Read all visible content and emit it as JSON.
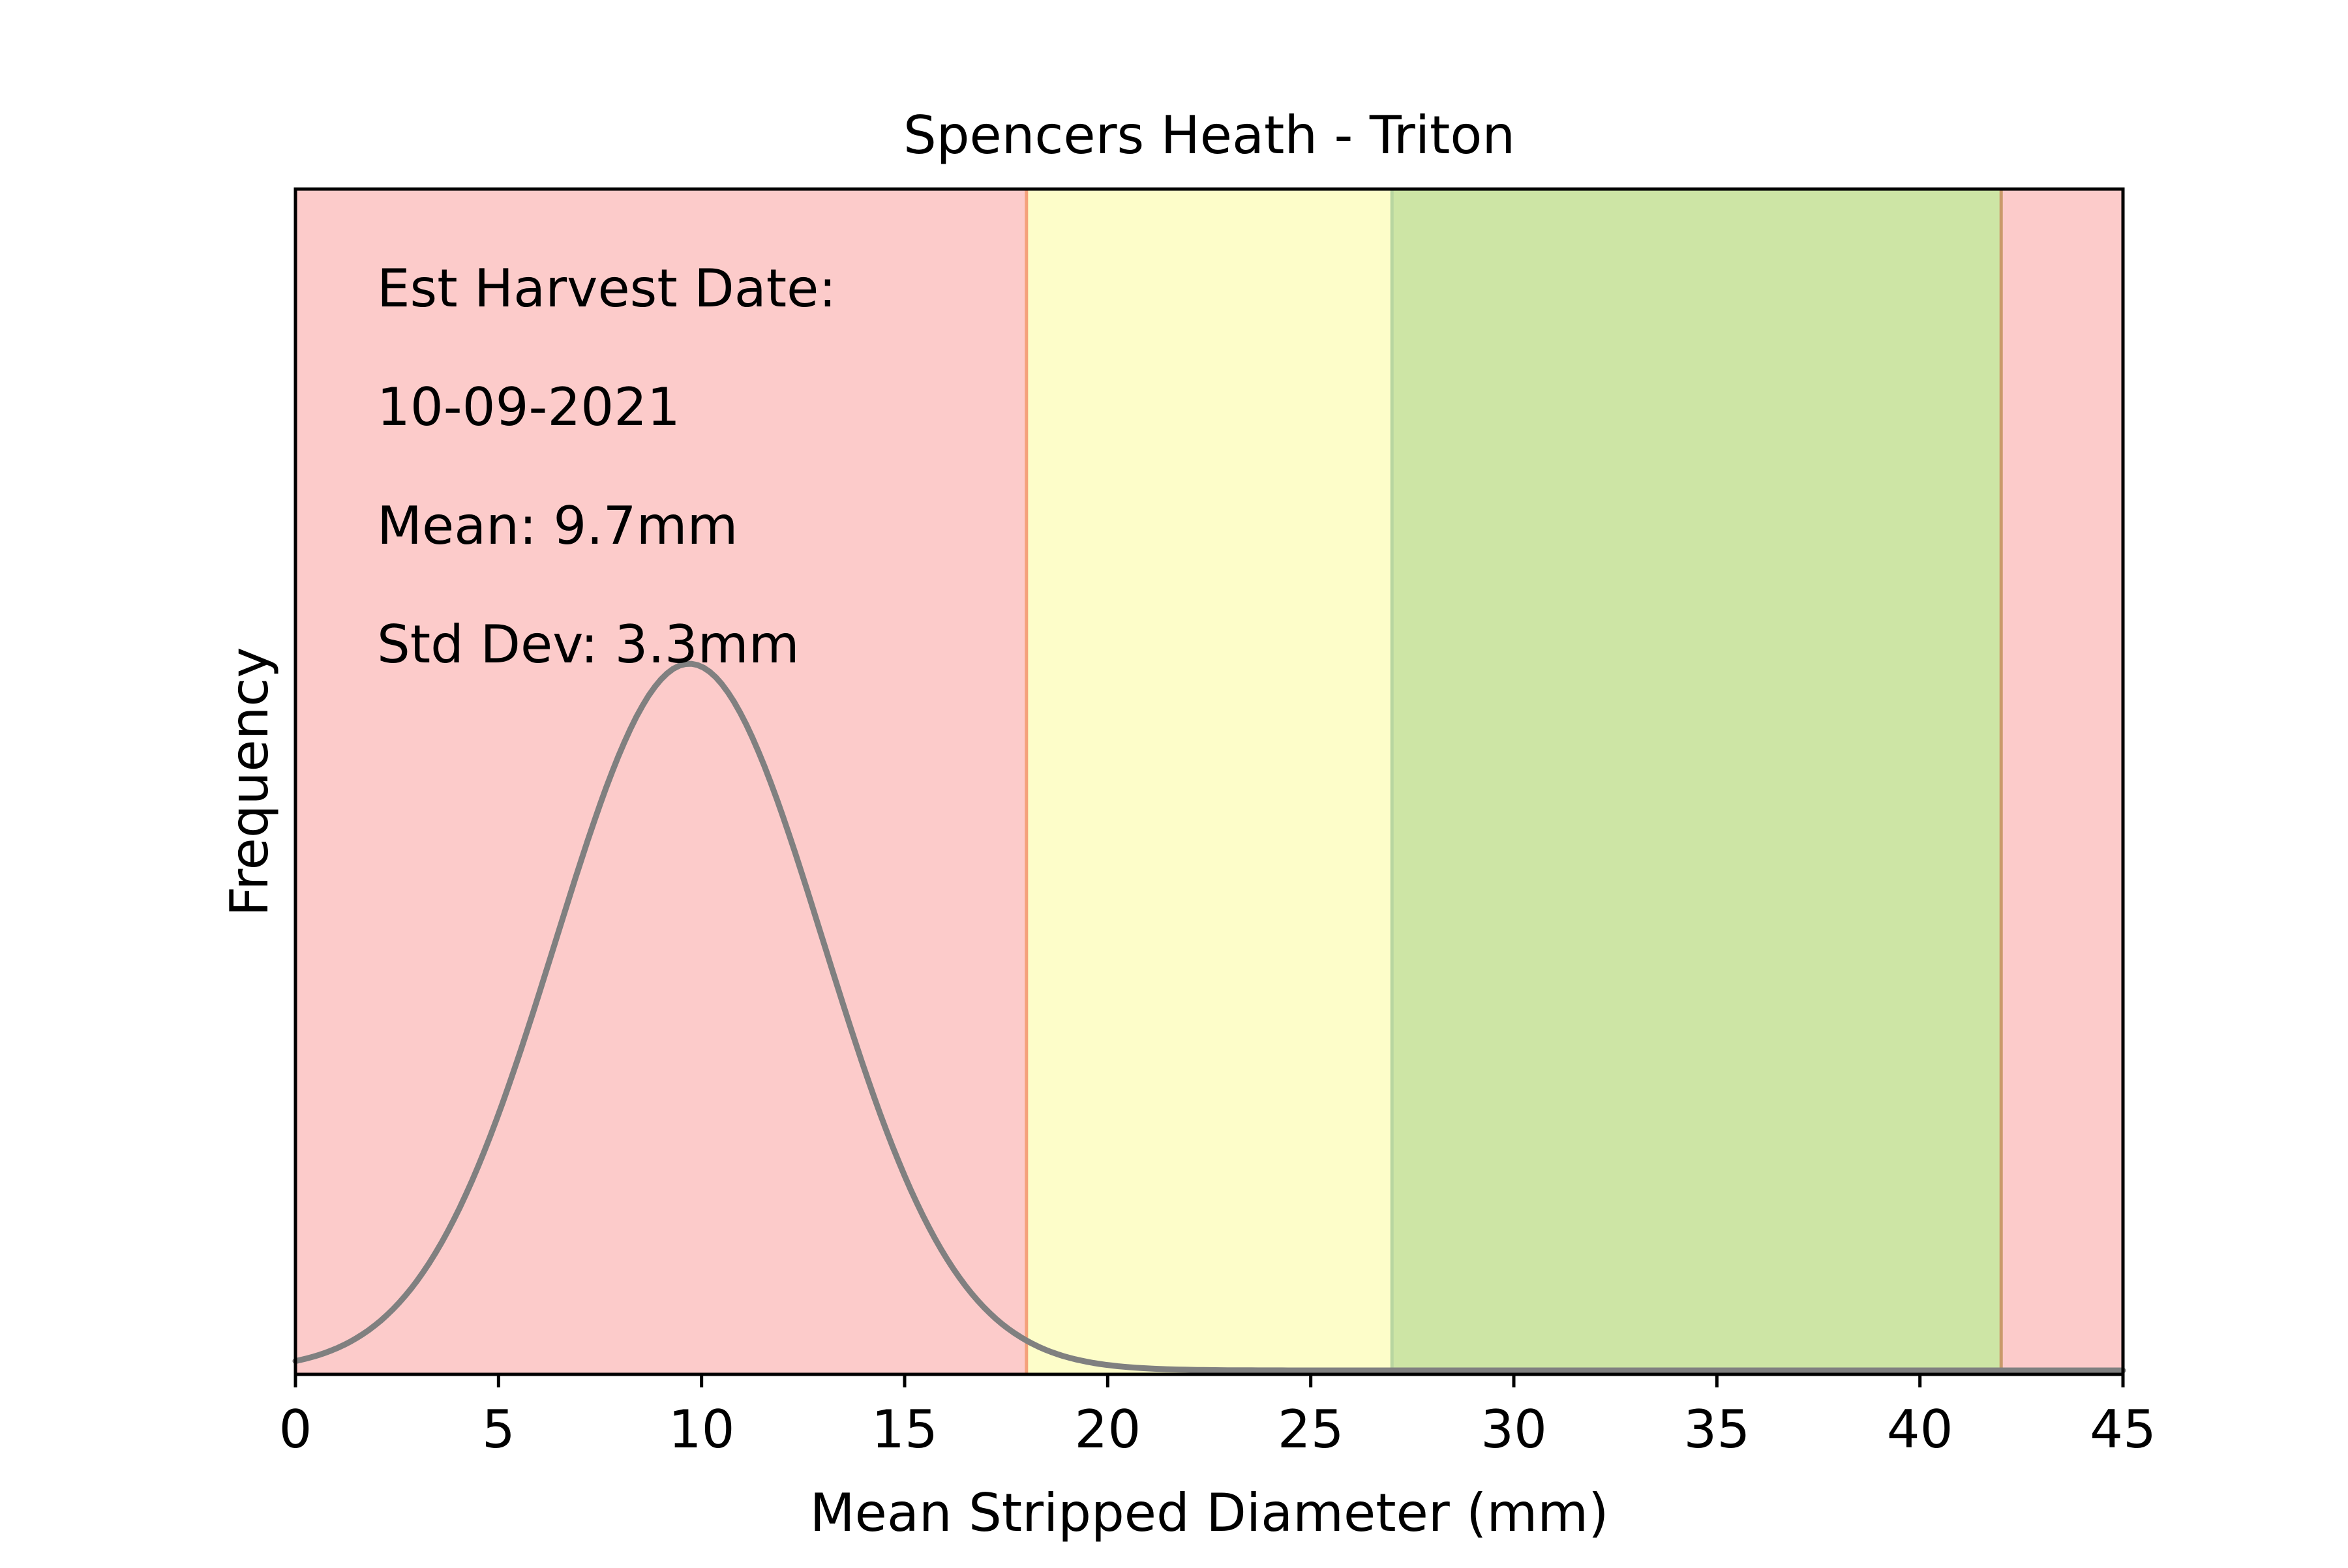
{
  "chart_data": {
    "type": "line",
    "title": "Spencers Heath - Triton",
    "xlabel": "Mean Stripped Diameter (mm)",
    "ylabel": "Frequency",
    "xlim": [
      0,
      45
    ],
    "x_ticks": [
      0,
      5,
      10,
      15,
      20,
      25,
      30,
      35,
      40,
      45
    ],
    "y_ticks_shown": false,
    "grid": false,
    "series": [
      {
        "distribution": "normal",
        "mean": 9.7,
        "std_dev": 3.3,
        "x_range": [
          0,
          45
        ],
        "color": "#808080"
      }
    ],
    "bands": [
      {
        "x_range": [
          0,
          18
        ],
        "fill": "#fccbca",
        "edge": "#f4a17a"
      },
      {
        "x_range": [
          18,
          27
        ],
        "fill": "#fdfdc9",
        "edge": "#b8d6a0"
      },
      {
        "x_range": [
          27,
          42
        ],
        "fill": "#cde5a5",
        "edge": "#c99a6a"
      },
      {
        "x_range": [
          42,
          45
        ],
        "fill": "#fccbca",
        "edge": "#f4a17a"
      }
    ],
    "annotations": [
      "Est Harvest Date:",
      "10-09-2021",
      "Mean: 9.7mm",
      "Std Dev: 3.3mm"
    ]
  }
}
